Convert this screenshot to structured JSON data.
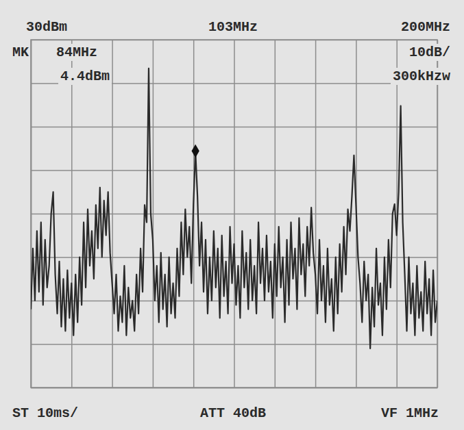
{
  "chart_data": {
    "type": "line",
    "annotations": {
      "ref_level": "30dBm",
      "center": "103MHz",
      "span": "200MHz",
      "marker_label": "MK",
      "marker_freq": "84MHz",
      "marker_level": "4.4dBm",
      "scale": "10dB/",
      "rbw": "300kHzw",
      "sweep": "ST 10ms/",
      "attenuation": "ATT 40dB",
      "video_filter": "VF 1MHz"
    },
    "marker_reading": {
      "x": 84,
      "y": 4.4
    },
    "x": [
      3,
      4,
      5,
      6,
      7,
      8,
      9,
      10,
      11,
      12,
      13,
      14,
      15,
      16,
      17,
      18,
      19,
      20,
      21,
      22,
      23,
      24,
      25,
      26,
      27,
      28,
      29,
      30,
      31,
      32,
      33,
      34,
      35,
      36,
      37,
      38,
      39,
      40,
      41,
      42,
      43,
      44,
      45,
      46,
      47,
      48,
      49,
      50,
      51,
      52,
      53,
      54,
      55,
      56,
      57,
      58,
      59,
      60,
      61,
      62,
      63,
      64,
      65,
      66,
      67,
      68,
      69,
      70,
      71,
      72,
      73,
      74,
      75,
      76,
      77,
      78,
      79,
      80,
      81,
      82,
      83,
      84,
      85,
      86,
      87,
      88,
      89,
      90,
      91,
      92,
      93,
      94,
      95,
      96,
      97,
      98,
      99,
      100,
      101,
      102,
      103,
      104,
      105,
      106,
      107,
      108,
      109,
      110,
      111,
      112,
      113,
      114,
      115,
      116,
      117,
      118,
      119,
      120,
      121,
      122,
      123,
      124,
      125,
      126,
      127,
      128,
      129,
      130,
      131,
      132,
      133,
      134,
      135,
      136,
      137,
      138,
      139,
      140,
      141,
      142,
      143,
      144,
      145,
      146,
      147,
      148,
      149,
      150,
      151,
      152,
      153,
      154,
      155,
      156,
      157,
      158,
      159,
      160,
      161,
      162,
      163,
      164,
      165,
      166,
      167,
      168,
      169,
      170,
      171,
      172,
      173,
      174,
      175,
      176,
      177,
      178,
      179,
      180,
      181,
      182,
      183,
      184,
      185,
      186,
      187,
      188,
      189,
      190,
      191,
      192,
      193,
      194,
      195,
      196,
      197,
      198,
      199,
      200,
      201,
      202,
      203
    ],
    "values": [
      -32,
      -18,
      -30,
      -14,
      -28,
      -12,
      -31,
      -16,
      -27,
      -22,
      -10,
      -5,
      -24,
      -33,
      -21,
      -36,
      -25,
      -37,
      -23,
      -34,
      -26,
      -38,
      -24,
      -35,
      -20,
      -31,
      -12,
      -27,
      -9,
      -22,
      -14,
      -25,
      -8,
      -18,
      -4,
      -20,
      -7,
      -15,
      -5,
      -19,
      -26,
      -33,
      -24,
      -37,
      -29,
      -35,
      -22,
      -38,
      -27,
      -34,
      -30,
      -37,
      -24,
      -33,
      -18,
      -28,
      -8,
      -12,
      23.4,
      -10,
      -16,
      -30,
      -22,
      -35,
      -19,
      -32,
      -24,
      -36,
      -20,
      -33,
      -26,
      -34,
      -18,
      -29,
      -12,
      -24,
      -9,
      -20,
      -13,
      -26,
      -8,
      4.4,
      -6,
      -22,
      -12,
      -28,
      -16,
      -33,
      -20,
      -30,
      -14,
      -27,
      -18,
      -34,
      -15,
      -29,
      -21,
      -33,
      -13,
      -26,
      -17,
      -31,
      -22,
      -34,
      -14,
      -27,
      -19,
      -32,
      -16,
      -30,
      -22,
      -33,
      -12,
      -26,
      -18,
      -30,
      -15,
      -28,
      -21,
      -34,
      -17,
      -29,
      -13,
      -27,
      -20,
      -35,
      -16,
      -31,
      -12,
      -25,
      -18,
      -32,
      -11,
      -24,
      -17,
      -29,
      -13,
      -22,
      -8.6,
      -19,
      -24,
      -33,
      -16,
      -30,
      -22,
      -35,
      -18,
      -31,
      -25,
      -37,
      -20,
      -33,
      -17,
      -28,
      -13,
      -24,
      -9,
      -14,
      -6,
      3.4,
      -8,
      -20,
      -26,
      -35,
      -21,
      -30,
      -24,
      -41,
      -27,
      -36,
      -18,
      -31,
      -26,
      -38,
      -20,
      -32,
      -16,
      -27,
      -10,
      -7.8,
      -15,
      -5,
      14.8,
      -12,
      -24,
      -37,
      -20,
      -33,
      -26,
      -38,
      -22,
      -34,
      -28,
      -37,
      -21,
      -33,
      -25,
      -38,
      -23,
      -35,
      -30
    ],
    "color": "#2a2a2a",
    "xlim": [
      3,
      203
    ],
    "xticks": [
      3,
      23,
      43,
      63,
      83,
      103,
      123,
      143,
      163,
      183,
      203
    ],
    "ylim": [
      -50,
      30
    ],
    "yticks": [
      -50,
      -40,
      -30,
      -20,
      -10,
      0,
      10,
      20,
      30
    ],
    "grid": true,
    "tick_labels": false
  }
}
